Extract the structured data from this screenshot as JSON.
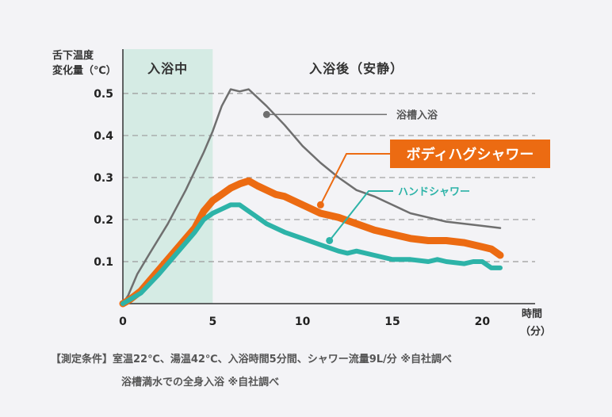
{
  "chart_data": {
    "type": "line",
    "y_axis_title_line1": "舌下温度",
    "y_axis_title_line2": "変化量（℃）",
    "x_axis_title_line1": "時間",
    "x_axis_title_line2": "（分）",
    "xlim": [
      0,
      22.5
    ],
    "ylim": [
      0,
      0.53
    ],
    "x_ticks": [
      0,
      5,
      10,
      15,
      20
    ],
    "y_ticks": [
      0.1,
      0.2,
      0.3,
      0.4,
      0.5
    ],
    "grid": "dashed horizontal",
    "phases": [
      {
        "label": "入浴中",
        "from": 0,
        "to": 5
      },
      {
        "label": "入浴後（安静）",
        "from": 5,
        "to": 22.5
      }
    ],
    "series": [
      {
        "name": "浴槽入浴",
        "color": "#6f6f6f",
        "label_at": [
          8,
          0.45
        ],
        "x": [
          0,
          0.3,
          0.8,
          1.5,
          2.5,
          3.5,
          4.5,
          5,
          5.5,
          6,
          6.5,
          7,
          8,
          9,
          10,
          11,
          12,
          13,
          14,
          15,
          16,
          17,
          18,
          19,
          20,
          21
        ],
        "y": [
          0,
          0.02,
          0.07,
          0.12,
          0.19,
          0.27,
          0.36,
          0.41,
          0.47,
          0.51,
          0.505,
          0.51,
          0.47,
          0.425,
          0.375,
          0.335,
          0.3,
          0.27,
          0.255,
          0.235,
          0.215,
          0.205,
          0.195,
          0.19,
          0.185,
          0.18
        ]
      },
      {
        "name": "ボディハグシャワー",
        "color": "#ec6b12",
        "label_at": [
          11,
          0.235
        ],
        "x": [
          0,
          0.4,
          1,
          2,
          3,
          4,
          4.5,
          5,
          5.5,
          6,
          6.5,
          7,
          7.5,
          8,
          8.5,
          9,
          10,
          11,
          12,
          13,
          14,
          15,
          16,
          17,
          18,
          19,
          20,
          20.5,
          21
        ],
        "y": [
          0,
          0.01,
          0.03,
          0.08,
          0.13,
          0.18,
          0.22,
          0.245,
          0.26,
          0.275,
          0.285,
          0.292,
          0.28,
          0.27,
          0.26,
          0.255,
          0.235,
          0.215,
          0.205,
          0.19,
          0.175,
          0.165,
          0.155,
          0.15,
          0.15,
          0.145,
          0.135,
          0.13,
          0.115
        ]
      },
      {
        "name": "ハンドシャワー",
        "color": "#2db3a8",
        "label_at": [
          11.5,
          0.15
        ],
        "x": [
          0,
          0.4,
          1,
          2,
          3,
          4,
          4.5,
          5,
          5.5,
          6,
          6.5,
          7,
          7.5,
          8,
          9,
          10,
          11,
          12,
          12.5,
          13,
          14,
          15,
          16,
          17,
          17.5,
          18,
          19,
          19.5,
          20,
          20.5,
          21
        ],
        "y": [
          0,
          0.01,
          0.025,
          0.07,
          0.12,
          0.17,
          0.2,
          0.215,
          0.225,
          0.235,
          0.235,
          0.22,
          0.205,
          0.19,
          0.17,
          0.155,
          0.14,
          0.125,
          0.12,
          0.125,
          0.115,
          0.105,
          0.105,
          0.1,
          0.105,
          0.1,
          0.095,
          0.1,
          0.1,
          0.085,
          0.085
        ]
      }
    ]
  },
  "footnote": {
    "line1": "【測定条件】室温22℃、湯温42℃、入浴時間5分間、シャワー流量9L/分 ※自社調べ",
    "line2": "浴槽満水での全身入浴 ※自社調べ"
  },
  "colors": {
    "background": "#f3f3f6",
    "phase_fill": "#d5ebe4",
    "grid": "#9a9a9a",
    "axis": "#333333"
  }
}
